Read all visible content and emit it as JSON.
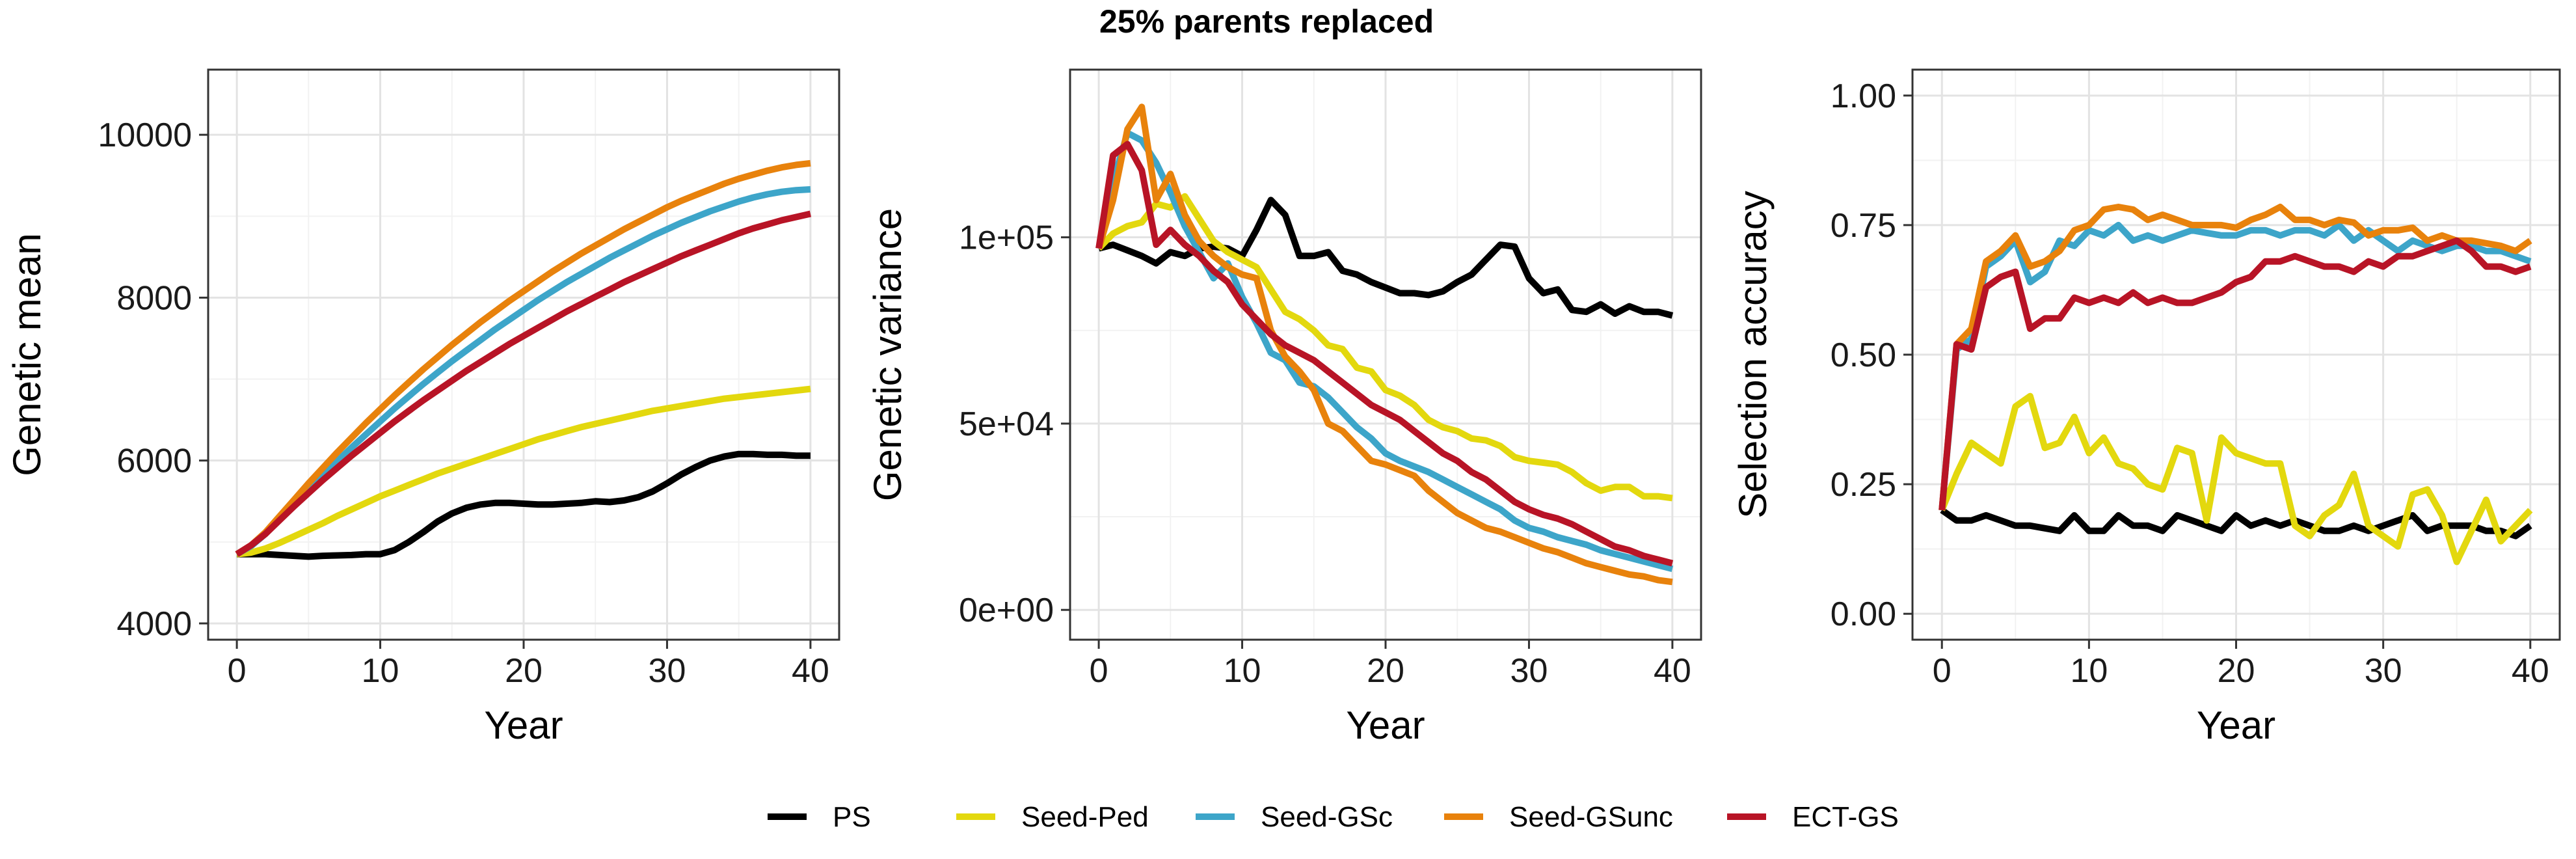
{
  "figure_title": "25% parents replaced",
  "colors": {
    "PS": "#000000",
    "Seed-Ped": "#E3D80E",
    "Seed-GSc": "#3DA5C9",
    "Seed-GSunc": "#E8820C",
    "ECT-GS": "#B81426"
  },
  "legend": [
    "PS",
    "Seed-Ped",
    "Seed-GSc",
    "Seed-GSunc",
    "ECT-GS"
  ],
  "chart_data": [
    {
      "type": "line",
      "xlabel": "Year",
      "ylabel": "Genetic mean",
      "xlim": [
        -2,
        42
      ],
      "ylim": [
        3800,
        10800
      ],
      "xticks": [
        0,
        10,
        20,
        30,
        40
      ],
      "yticks": [
        4000,
        6000,
        8000,
        10000
      ],
      "ytick_labels": [
        "4000",
        "6000",
        "8000",
        "10000"
      ],
      "grid": true,
      "x": [
        0,
        1,
        2,
        3,
        4,
        5,
        6,
        7,
        8,
        9,
        10,
        11,
        12,
        13,
        14,
        15,
        16,
        17,
        18,
        19,
        20,
        21,
        22,
        23,
        24,
        25,
        26,
        27,
        28,
        29,
        30,
        31,
        32,
        33,
        34,
        35,
        36,
        37,
        38,
        39,
        40
      ],
      "series": [
        {
          "name": "PS",
          "values": [
            4850,
            4850,
            4850,
            4840,
            4830,
            4820,
            4830,
            4835,
            4840,
            4850,
            4850,
            4900,
            5000,
            5120,
            5250,
            5350,
            5420,
            5460,
            5480,
            5480,
            5470,
            5460,
            5460,
            5470,
            5480,
            5500,
            5490,
            5510,
            5550,
            5620,
            5720,
            5830,
            5920,
            6000,
            6050,
            6080,
            6080,
            6070,
            6070,
            6060,
            6060
          ]
        },
        {
          "name": "Seed-Ped",
          "values": [
            4850,
            4870,
            4920,
            4990,
            5070,
            5150,
            5230,
            5320,
            5400,
            5480,
            5560,
            5630,
            5700,
            5770,
            5840,
            5900,
            5960,
            6020,
            6080,
            6140,
            6200,
            6260,
            6310,
            6360,
            6410,
            6450,
            6490,
            6530,
            6570,
            6610,
            6640,
            6670,
            6700,
            6730,
            6760,
            6780,
            6800,
            6820,
            6840,
            6860,
            6880
          ]
        },
        {
          "name": "Seed-GSc",
          "values": [
            4850,
            4950,
            5100,
            5280,
            5460,
            5640,
            5820,
            5990,
            6160,
            6320,
            6480,
            6640,
            6790,
            6940,
            7080,
            7220,
            7350,
            7480,
            7610,
            7730,
            7850,
            7970,
            8080,
            8190,
            8290,
            8390,
            8490,
            8580,
            8670,
            8760,
            8840,
            8920,
            8990,
            9060,
            9120,
            9180,
            9230,
            9270,
            9300,
            9320,
            9330
          ]
        },
        {
          "name": "Seed-GSunc",
          "values": [
            4850,
            4960,
            5120,
            5320,
            5520,
            5720,
            5910,
            6100,
            6280,
            6460,
            6630,
            6800,
            6960,
            7120,
            7270,
            7420,
            7560,
            7700,
            7830,
            7960,
            8080,
            8200,
            8320,
            8430,
            8540,
            8640,
            8740,
            8840,
            8930,
            9020,
            9110,
            9190,
            9260,
            9330,
            9400,
            9460,
            9510,
            9560,
            9600,
            9630,
            9650
          ]
        },
        {
          "name": "ECT-GS",
          "values": [
            4850,
            4960,
            5100,
            5270,
            5440,
            5600,
            5760,
            5910,
            6060,
            6200,
            6340,
            6480,
            6610,
            6740,
            6860,
            6980,
            7100,
            7210,
            7320,
            7430,
            7530,
            7630,
            7730,
            7830,
            7920,
            8010,
            8100,
            8190,
            8270,
            8350,
            8430,
            8510,
            8580,
            8650,
            8720,
            8790,
            8850,
            8900,
            8950,
            8990,
            9030
          ]
        }
      ]
    },
    {
      "type": "line",
      "xlabel": "Year",
      "ylabel": "Genetic variance",
      "xlim": [
        -2,
        42
      ],
      "ylim": [
        -8000,
        145000
      ],
      "xticks": [
        0,
        10,
        20,
        30,
        40
      ],
      "yticks": [
        0,
        50000,
        100000
      ],
      "ytick_labels": [
        "0e+00",
        "5e+04",
        "1e+05"
      ],
      "grid": true,
      "x": [
        0,
        1,
        2,
        3,
        4,
        5,
        6,
        7,
        8,
        9,
        10,
        11,
        12,
        13,
        14,
        15,
        16,
        17,
        18,
        19,
        20,
        21,
        22,
        23,
        24,
        25,
        26,
        27,
        28,
        29,
        30,
        31,
        32,
        33,
        34,
        35,
        36,
        37,
        38,
        39,
        40
      ],
      "series": [
        {
          "name": "PS",
          "values": [
            97000,
            98000,
            96500,
            95000,
            93000,
            96000,
            95000,
            97000,
            97500,
            97000,
            95000,
            102000,
            110000,
            106000,
            95000,
            95000,
            96000,
            91000,
            90000,
            88000,
            86500,
            85000,
            85000,
            84500,
            85500,
            88000,
            90000,
            94000,
            98000,
            97500,
            89000,
            85000,
            86000,
            80500,
            80000,
            82000,
            79500,
            81500,
            80000,
            80000,
            79000
          ]
        },
        {
          "name": "Seed-Ped",
          "values": [
            97000,
            101000,
            103000,
            104000,
            109000,
            108000,
            111000,
            105000,
            99000,
            96000,
            94000,
            92000,
            86000,
            80000,
            78000,
            75000,
            71000,
            70000,
            65000,
            64000,
            59000,
            57500,
            55000,
            51000,
            49000,
            48000,
            46000,
            45500,
            44000,
            41000,
            40000,
            39500,
            39000,
            37000,
            34000,
            32000,
            33000,
            33000,
            30500,
            30500,
            30000
          ]
        },
        {
          "name": "Seed-GSc",
          "values": [
            97000,
            115000,
            128000,
            126000,
            120000,
            112000,
            103000,
            96000,
            89000,
            93000,
            84000,
            77000,
            69000,
            67000,
            61000,
            60000,
            57000,
            53000,
            49000,
            46000,
            42000,
            40000,
            38500,
            37000,
            35000,
            33000,
            31000,
            29000,
            27000,
            24000,
            22000,
            21000,
            19500,
            18500,
            17500,
            16000,
            15000,
            14000,
            13000,
            12000,
            11000
          ]
        },
        {
          "name": "Seed-GSunc",
          "values": [
            97000,
            110000,
            129000,
            135000,
            110000,
            117000,
            106000,
            99000,
            95000,
            92000,
            90000,
            89000,
            75000,
            68000,
            64000,
            59000,
            50000,
            48000,
            44000,
            40000,
            39000,
            37500,
            36000,
            32000,
            29000,
            26000,
            24000,
            22000,
            21000,
            19500,
            18000,
            16500,
            15500,
            14000,
            12500,
            11500,
            10500,
            9500,
            9000,
            8000,
            7500
          ]
        },
        {
          "name": "ECT-GS",
          "values": [
            97000,
            122000,
            125000,
            118000,
            98000,
            102000,
            98000,
            95000,
            91000,
            88000,
            82000,
            78000,
            74000,
            71000,
            69000,
            67000,
            64000,
            61000,
            58000,
            55000,
            53000,
            51000,
            48000,
            45000,
            42000,
            40000,
            37000,
            35000,
            32000,
            29000,
            27000,
            25500,
            24500,
            23000,
            21000,
            19000,
            17000,
            16000,
            14500,
            13500,
            12500
          ]
        }
      ]
    },
    {
      "type": "line",
      "xlabel": "Year",
      "ylabel": "Selection accuracy",
      "xlim": [
        -2,
        42
      ],
      "ylim": [
        -0.05,
        1.05
      ],
      "xticks": [
        0,
        10,
        20,
        30,
        40
      ],
      "yticks": [
        0,
        0.25,
        0.5,
        0.75,
        1.0
      ],
      "ytick_labels": [
        "0.00",
        "0.25",
        "0.50",
        "0.75",
        "1.00"
      ],
      "grid": true,
      "x": [
        0,
        1,
        2,
        3,
        4,
        5,
        6,
        7,
        8,
        9,
        10,
        11,
        12,
        13,
        14,
        15,
        16,
        17,
        18,
        19,
        20,
        21,
        22,
        23,
        24,
        25,
        26,
        27,
        28,
        29,
        30,
        31,
        32,
        33,
        34,
        35,
        36,
        37,
        38,
        39,
        40
      ],
      "series": [
        {
          "name": "PS",
          "values": [
            0.2,
            0.18,
            0.18,
            0.19,
            0.18,
            0.17,
            0.17,
            0.165,
            0.16,
            0.19,
            0.16,
            0.16,
            0.19,
            0.17,
            0.17,
            0.16,
            0.19,
            0.18,
            0.17,
            0.16,
            0.19,
            0.17,
            0.18,
            0.17,
            0.18,
            0.17,
            0.16,
            0.16,
            0.17,
            0.16,
            0.17,
            0.18,
            0.19,
            0.16,
            0.17,
            0.17,
            0.17,
            0.16,
            0.16,
            0.15,
            0.17
          ]
        },
        {
          "name": "Seed-Ped",
          "values": [
            0.2,
            0.27,
            0.33,
            0.31,
            0.29,
            0.4,
            0.42,
            0.32,
            0.33,
            0.38,
            0.31,
            0.34,
            0.29,
            0.28,
            0.25,
            0.24,
            0.32,
            0.31,
            0.18,
            0.34,
            0.31,
            0.3,
            0.29,
            0.29,
            0.17,
            0.15,
            0.19,
            0.21,
            0.27,
            0.17,
            0.15,
            0.13,
            0.23,
            0.24,
            0.19,
            0.1,
            0.16,
            0.22,
            0.14,
            0.17,
            0.2
          ]
        },
        {
          "name": "Seed-GSc",
          "values": [
            0.2,
            0.51,
            0.53,
            0.67,
            0.69,
            0.72,
            0.64,
            0.66,
            0.72,
            0.71,
            0.74,
            0.73,
            0.75,
            0.72,
            0.73,
            0.72,
            0.73,
            0.74,
            0.735,
            0.73,
            0.73,
            0.74,
            0.74,
            0.73,
            0.74,
            0.74,
            0.73,
            0.75,
            0.72,
            0.74,
            0.72,
            0.7,
            0.72,
            0.71,
            0.7,
            0.71,
            0.71,
            0.7,
            0.7,
            0.69,
            0.68
          ]
        },
        {
          "name": "Seed-GSunc",
          "values": [
            0.2,
            0.52,
            0.55,
            0.68,
            0.7,
            0.73,
            0.67,
            0.68,
            0.7,
            0.74,
            0.75,
            0.78,
            0.785,
            0.78,
            0.76,
            0.77,
            0.76,
            0.75,
            0.75,
            0.75,
            0.745,
            0.76,
            0.77,
            0.785,
            0.76,
            0.76,
            0.75,
            0.76,
            0.755,
            0.73,
            0.74,
            0.74,
            0.745,
            0.72,
            0.73,
            0.72,
            0.72,
            0.715,
            0.71,
            0.7,
            0.72
          ]
        },
        {
          "name": "ECT-GS",
          "values": [
            0.2,
            0.52,
            0.51,
            0.63,
            0.65,
            0.66,
            0.55,
            0.57,
            0.57,
            0.61,
            0.6,
            0.61,
            0.6,
            0.62,
            0.6,
            0.61,
            0.6,
            0.6,
            0.61,
            0.62,
            0.64,
            0.65,
            0.68,
            0.68,
            0.69,
            0.68,
            0.67,
            0.67,
            0.66,
            0.68,
            0.67,
            0.69,
            0.69,
            0.7,
            0.71,
            0.72,
            0.7,
            0.67,
            0.67,
            0.66,
            0.67
          ]
        }
      ]
    }
  ]
}
